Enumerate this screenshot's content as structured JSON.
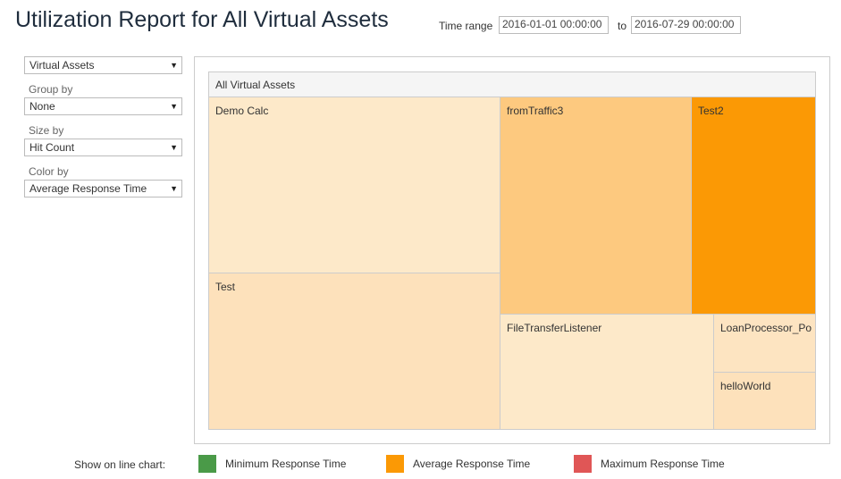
{
  "header": {
    "title": "Utilization Report for All Virtual Assets",
    "time_range_label": "Time range",
    "start": "2016-01-01 00:00:00",
    "to_label": "to",
    "end": "2016-07-29 00:00:00"
  },
  "sidebar": {
    "asset_select": "Virtual Assets",
    "group_by_label": "Group by",
    "group_by": "None",
    "size_by_label": "Size by",
    "size_by": "Hit Count",
    "color_by_label": "Color by",
    "color_by": "Average Response Time"
  },
  "treemap": {
    "root": "All Virtual Assets",
    "tiles": [
      {
        "label": "Demo Calc",
        "color": "#fde9c9"
      },
      {
        "label": "Test",
        "color": "#fde1bb"
      },
      {
        "label": "fromTraffic3",
        "color": "#fdc97f"
      },
      {
        "label": "Test2",
        "color": "#fb9905"
      },
      {
        "label": "FileTransferListener",
        "color": "#fde9c9"
      },
      {
        "label": "LoanProcessor_Po",
        "color": "#fde4c1"
      },
      {
        "label": "helloWorld",
        "color": "#fde1bb"
      }
    ]
  },
  "legend": {
    "label": "Show on line chart:",
    "items": [
      {
        "label": "Minimum Response Time",
        "color": "#4a9a48"
      },
      {
        "label": "Average Response Time",
        "color": "#fb9905"
      },
      {
        "label": "Maximum Response Time",
        "color": "#e05656"
      }
    ]
  }
}
